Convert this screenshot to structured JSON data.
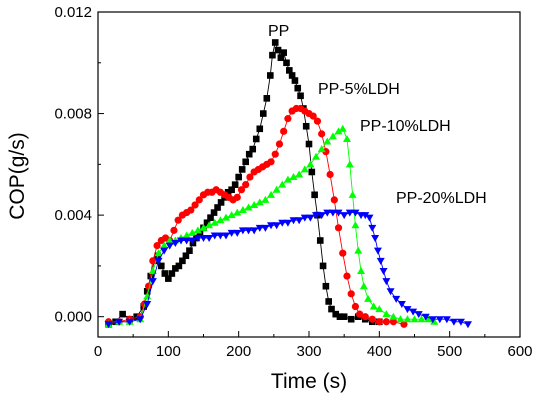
{
  "chart_data": {
    "type": "scatter",
    "title": "",
    "xlabel": "Time (s)",
    "ylabel": "COP(g/s)",
    "xlim": [
      0,
      600
    ],
    "ylim": [
      -0.0008,
      0.012
    ],
    "xticks": [
      "0",
      "100",
      "200",
      "300",
      "400",
      "500",
      "600"
    ],
    "yticks": [
      "0.000",
      "0.004",
      "0.008",
      "0.012"
    ],
    "grid": false,
    "series": [
      {
        "name": "PP",
        "color": "#000000",
        "marker": "square",
        "points": [
          [
            15,
            -0.0003
          ],
          [
            25,
            -0.0002
          ],
          [
            35,
            0.0001
          ],
          [
            45,
            -0.0001
          ],
          [
            55,
            0.0
          ],
          [
            65,
            0.0004
          ],
          [
            70,
            0.001
          ],
          [
            75,
            0.0016
          ],
          [
            80,
            0.0022
          ],
          [
            85,
            0.0024
          ],
          [
            90,
            0.002
          ],
          [
            95,
            0.0017
          ],
          [
            100,
            0.0015
          ],
          [
            105,
            0.0017
          ],
          [
            110,
            0.0019
          ],
          [
            115,
            0.002
          ],
          [
            120,
            0.0022
          ],
          [
            125,
            0.0024
          ],
          [
            130,
            0.0026
          ],
          [
            135,
            0.0029
          ],
          [
            140,
            0.0031
          ],
          [
            145,
            0.0033
          ],
          [
            150,
            0.0035
          ],
          [
            155,
            0.0037
          ],
          [
            160,
            0.0039
          ],
          [
            165,
            0.0041
          ],
          [
            170,
            0.0043
          ],
          [
            175,
            0.0045
          ],
          [
            180,
            0.0047
          ],
          [
            185,
            0.0049
          ],
          [
            190,
            0.005
          ],
          [
            195,
            0.0052
          ],
          [
            200,
            0.0055
          ],
          [
            205,
            0.0058
          ],
          [
            210,
            0.0061
          ],
          [
            215,
            0.0064
          ],
          [
            220,
            0.0066
          ],
          [
            225,
            0.007
          ],
          [
            230,
            0.0074
          ],
          [
            235,
            0.008
          ],
          [
            240,
            0.0086
          ],
          [
            245,
            0.0095
          ],
          [
            248,
            0.0103
          ],
          [
            252,
            0.0108
          ],
          [
            256,
            0.0105
          ],
          [
            260,
            0.0102
          ],
          [
            264,
            0.0104
          ],
          [
            268,
            0.01
          ],
          [
            272,
            0.0097
          ],
          [
            276,
            0.0095
          ],
          [
            280,
            0.0093
          ],
          [
            284,
            0.009
          ],
          [
            288,
            0.0087
          ],
          [
            292,
            0.0082
          ],
          [
            296,
            0.0075
          ],
          [
            300,
            0.0068
          ],
          [
            304,
            0.0057
          ],
          [
            308,
            0.0048
          ],
          [
            312,
            0.004
          ],
          [
            316,
            0.003
          ],
          [
            320,
            0.002
          ],
          [
            324,
            0.0012
          ],
          [
            328,
            0.0006
          ],
          [
            332,
            0.0003
          ],
          [
            338,
            0.0001
          ],
          [
            344,
            0.0
          ],
          [
            350,
            0.0
          ],
          [
            360,
            -0.0001
          ],
          [
            370,
            0.0
          ],
          [
            380,
            -0.0001
          ],
          [
            390,
            -0.0002
          ],
          [
            400,
            -0.0002
          ]
        ]
      },
      {
        "name": "PP-5%LDH",
        "color": "#ff0000",
        "marker": "circle",
        "points": [
          [
            15,
            -0.0002
          ],
          [
            30,
            -0.0002
          ],
          [
            45,
            -0.0001
          ],
          [
            60,
            0.0
          ],
          [
            66,
            0.0005
          ],
          [
            72,
            0.0012
          ],
          [
            78,
            0.0022
          ],
          [
            84,
            0.0028
          ],
          [
            90,
            0.003
          ],
          [
            96,
            0.0031
          ],
          [
            102,
            0.003
          ],
          [
            108,
            0.0034
          ],
          [
            114,
            0.0038
          ],
          [
            120,
            0.004
          ],
          [
            126,
            0.0041
          ],
          [
            132,
            0.0042
          ],
          [
            138,
            0.0044
          ],
          [
            144,
            0.0046
          ],
          [
            150,
            0.0048
          ],
          [
            156,
            0.0049
          ],
          [
            162,
            0.0049
          ],
          [
            168,
            0.005
          ],
          [
            174,
            0.0049
          ],
          [
            180,
            0.0048
          ],
          [
            186,
            0.0047
          ],
          [
            192,
            0.0046
          ],
          [
            198,
            0.0047
          ],
          [
            204,
            0.005
          ],
          [
            210,
            0.0052
          ],
          [
            216,
            0.0055
          ],
          [
            222,
            0.0057
          ],
          [
            228,
            0.0058
          ],
          [
            234,
            0.0059
          ],
          [
            240,
            0.006
          ],
          [
            246,
            0.0061
          ],
          [
            252,
            0.0064
          ],
          [
            258,
            0.0068
          ],
          [
            264,
            0.0073
          ],
          [
            270,
            0.0078
          ],
          [
            276,
            0.0081
          ],
          [
            282,
            0.0082
          ],
          [
            288,
            0.0082
          ],
          [
            294,
            0.0081
          ],
          [
            300,
            0.008
          ],
          [
            306,
            0.0079
          ],
          [
            312,
            0.0077
          ],
          [
            318,
            0.0072
          ],
          [
            324,
            0.0065
          ],
          [
            330,
            0.0056
          ],
          [
            336,
            0.0046
          ],
          [
            342,
            0.0035
          ],
          [
            348,
            0.0025
          ],
          [
            354,
            0.0016
          ],
          [
            360,
            0.0009
          ],
          [
            366,
            0.0004
          ],
          [
            372,
            0.0001
          ],
          [
            380,
            0.0
          ],
          [
            390,
            -0.0001
          ],
          [
            400,
            -0.0002
          ],
          [
            410,
            -0.0002
          ],
          [
            420,
            -0.0002
          ],
          [
            435,
            -0.0003
          ]
        ]
      },
      {
        "name": "PP-10%LDH",
        "color": "#00ff00",
        "marker": "triangle-up",
        "points": [
          [
            15,
            -0.0003
          ],
          [
            30,
            -0.0002
          ],
          [
            45,
            -0.0002
          ],
          [
            60,
            -0.0001
          ],
          [
            70,
            0.0008
          ],
          [
            78,
            0.0018
          ],
          [
            86,
            0.0025
          ],
          [
            94,
            0.0028
          ],
          [
            102,
            0.003
          ],
          [
            110,
            0.003
          ],
          [
            118,
            0.0031
          ],
          [
            126,
            0.0032
          ],
          [
            134,
            0.0033
          ],
          [
            142,
            0.0034
          ],
          [
            150,
            0.0035
          ],
          [
            158,
            0.0036
          ],
          [
            166,
            0.0037
          ],
          [
            174,
            0.0038
          ],
          [
            182,
            0.0039
          ],
          [
            190,
            0.004
          ],
          [
            198,
            0.0041
          ],
          [
            206,
            0.0042
          ],
          [
            214,
            0.0043
          ],
          [
            222,
            0.0044
          ],
          [
            230,
            0.0045
          ],
          [
            238,
            0.0046
          ],
          [
            246,
            0.0048
          ],
          [
            254,
            0.005
          ],
          [
            262,
            0.0052
          ],
          [
            270,
            0.0054
          ],
          [
            278,
            0.0055
          ],
          [
            286,
            0.0056
          ],
          [
            294,
            0.0058
          ],
          [
            302,
            0.006
          ],
          [
            310,
            0.0063
          ],
          [
            318,
            0.0066
          ],
          [
            326,
            0.0069
          ],
          [
            334,
            0.0071
          ],
          [
            342,
            0.0073
          ],
          [
            348,
            0.0074
          ],
          [
            354,
            0.007
          ],
          [
            358,
            0.006
          ],
          [
            362,
            0.0048
          ],
          [
            366,
            0.0036
          ],
          [
            370,
            0.0026
          ],
          [
            374,
            0.0018
          ],
          [
            378,
            0.0012
          ],
          [
            384,
            0.0007
          ],
          [
            392,
            0.0004
          ],
          [
            400,
            0.0003
          ],
          [
            410,
            0.0001
          ],
          [
            420,
            0.0
          ],
          [
            430,
            -0.0001
          ],
          [
            440,
            -0.0001
          ],
          [
            450,
            -0.0001
          ],
          [
            460,
            -0.0001
          ],
          [
            470,
            -0.0001
          ],
          [
            478,
            -0.0002
          ]
        ]
      },
      {
        "name": "PP-20%LDH",
        "color": "#0000ff",
        "marker": "triangle-down",
        "points": [
          [
            15,
            -0.0003
          ],
          [
            30,
            -0.0002
          ],
          [
            45,
            -0.0002
          ],
          [
            60,
            -0.0001
          ],
          [
            70,
            0.0005
          ],
          [
            78,
            0.0014
          ],
          [
            86,
            0.0022
          ],
          [
            94,
            0.0026
          ],
          [
            102,
            0.0028
          ],
          [
            110,
            0.0029
          ],
          [
            118,
            0.003
          ],
          [
            126,
            0.003
          ],
          [
            134,
            0.003
          ],
          [
            142,
            0.0031
          ],
          [
            150,
            0.0031
          ],
          [
            158,
            0.0031
          ],
          [
            166,
            0.0032
          ],
          [
            174,
            0.0032
          ],
          [
            182,
            0.0032
          ],
          [
            190,
            0.0033
          ],
          [
            198,
            0.0033
          ],
          [
            206,
            0.0034
          ],
          [
            214,
            0.0034
          ],
          [
            222,
            0.0034
          ],
          [
            230,
            0.0035
          ],
          [
            238,
            0.0035
          ],
          [
            246,
            0.0036
          ],
          [
            254,
            0.0036
          ],
          [
            262,
            0.0037
          ],
          [
            270,
            0.0037
          ],
          [
            278,
            0.0038
          ],
          [
            286,
            0.0038
          ],
          [
            294,
            0.0039
          ],
          [
            302,
            0.0039
          ],
          [
            310,
            0.004
          ],
          [
            318,
            0.004
          ],
          [
            326,
            0.0041
          ],
          [
            334,
            0.0041
          ],
          [
            342,
            0.0041
          ],
          [
            350,
            0.004
          ],
          [
            358,
            0.0041
          ],
          [
            366,
            0.0041
          ],
          [
            374,
            0.004
          ],
          [
            380,
            0.004
          ],
          [
            386,
            0.0039
          ],
          [
            390,
            0.0035
          ],
          [
            394,
            0.0031
          ],
          [
            398,
            0.0026
          ],
          [
            402,
            0.0022
          ],
          [
            406,
            0.0018
          ],
          [
            410,
            0.0014
          ],
          [
            416,
            0.001
          ],
          [
            424,
            0.0007
          ],
          [
            432,
            0.0005
          ],
          [
            440,
            0.0003
          ],
          [
            448,
            0.0002
          ],
          [
            456,
            0.0001
          ],
          [
            466,
            0.0
          ],
          [
            476,
            -0.0001
          ],
          [
            486,
            -0.0001
          ],
          [
            496,
            -0.0001
          ],
          [
            506,
            -0.0002
          ],
          [
            516,
            -0.0002
          ],
          [
            526,
            -0.0003
          ]
        ]
      }
    ]
  }
}
